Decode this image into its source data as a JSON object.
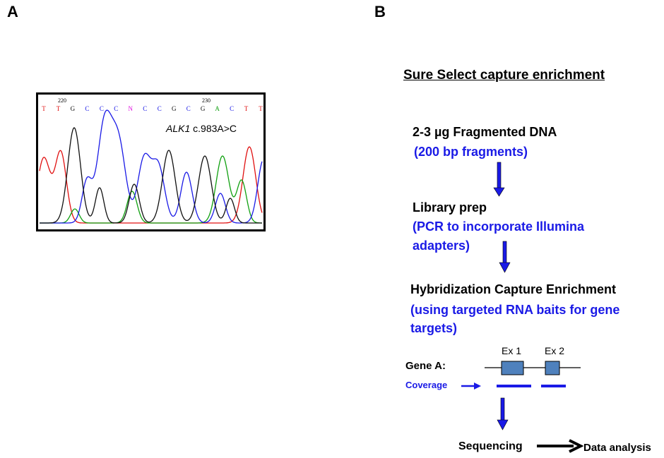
{
  "panels": {
    "a_label": "A",
    "b_label": "B"
  },
  "chromatogram": {
    "position_labels": [
      "220",
      "230"
    ],
    "bases": [
      "T",
      "T",
      "G",
      "C",
      "C",
      "C",
      "N",
      "C",
      "C",
      "G",
      "C",
      "G",
      "A",
      "C",
      "T",
      "T"
    ],
    "mutation_gene": "ALK1",
    "mutation_change": " c.983A>C",
    "colors": {
      "T": "#e01010",
      "G": "#101010",
      "C": "#1a1ae6",
      "A": "#10a010",
      "N": "#e010e0"
    }
  },
  "workflow": {
    "title": "Sure Select capture enrichment",
    "steps": [
      {
        "title": "2-3 µg Fragmented DNA",
        "notes": [
          "(200 bp fragments)"
        ]
      },
      {
        "title": "Library prep",
        "notes": [
          "(PCR to incorporate Illumina",
          "adapters)"
        ]
      },
      {
        "title": "Hybridization Capture Enrichment",
        "notes": [
          "(using targeted RNA baits for gene",
          "targets)"
        ]
      }
    ],
    "gene": {
      "label": "Gene A:",
      "exons": [
        "Ex 1",
        "Ex 2"
      ],
      "coverage_label": "Coverage"
    },
    "final": {
      "sequencing": "Sequencing",
      "analysis": "Data analysis"
    },
    "colors": {
      "arrow": "#1a1ae6",
      "exon_fill": "#4f81bd",
      "note_text": "#1a1ae6"
    }
  }
}
